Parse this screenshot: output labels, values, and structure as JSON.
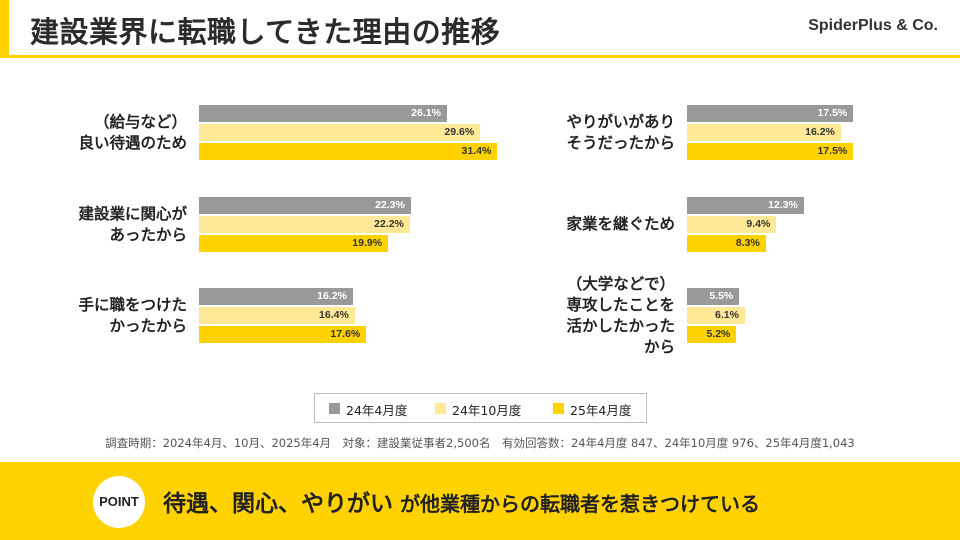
{
  "header": {
    "title": "建設業界に転職してきた理由の推移",
    "brand": "SpiderPlus & Co.",
    "accent_color": "#ffd200"
  },
  "chart_data": {
    "type": "bar",
    "orientation": "horizontal",
    "title": "建設業界に転職してきた理由の推移",
    "unit": "%",
    "xlim": [
      0,
      40
    ],
    "grid": false,
    "legend_position": "bottom-center",
    "categories": [
      "（給与など）\n良い待遇のため",
      "建設業に関心が\nあったから",
      "手に職をつけた\nかったから",
      "やりがいがあり\nそうだったから",
      "家業を継ぐため",
      "（大学などで）\n専攻したことを\n活かしたかった\nから"
    ],
    "series": [
      {
        "name": "24年4月度",
        "color": "#999999",
        "values": [
          26.1,
          22.3,
          16.2,
          17.5,
          12.3,
          5.5
        ],
        "labels": [
          "26.1%",
          "22.3%",
          "16.2%",
          "17.5%",
          "12.3%",
          "5.5%"
        ]
      },
      {
        "name": "24年10月度",
        "color": "#ffe996",
        "values": [
          29.6,
          22.2,
          16.4,
          16.2,
          9.4,
          6.1
        ],
        "labels": [
          "29.6%",
          "22.2%",
          "16.4%",
          "16.2%",
          "9.4%",
          "6.1%"
        ]
      },
      {
        "name": "25年4月度",
        "color": "#ffd200",
        "values": [
          31.4,
          19.9,
          17.6,
          17.5,
          8.3,
          5.2
        ],
        "labels": [
          "31.4%",
          "19.9%",
          "17.6%",
          "17.5%",
          "8.3%",
          "5.2%"
        ]
      }
    ]
  },
  "footnote": "調査時期：2024年4月、10月、2025年4月　対象：建設業従事者2,500名　有効回答数：24年4月度 847、24年10月度 976、25年4月度1,043",
  "banner": {
    "badge": "POINT",
    "text_main": "待遇、関心、やりがい",
    "text_rest": " が他業種からの転職者を惹きつけている",
    "color": "#ffd200"
  }
}
